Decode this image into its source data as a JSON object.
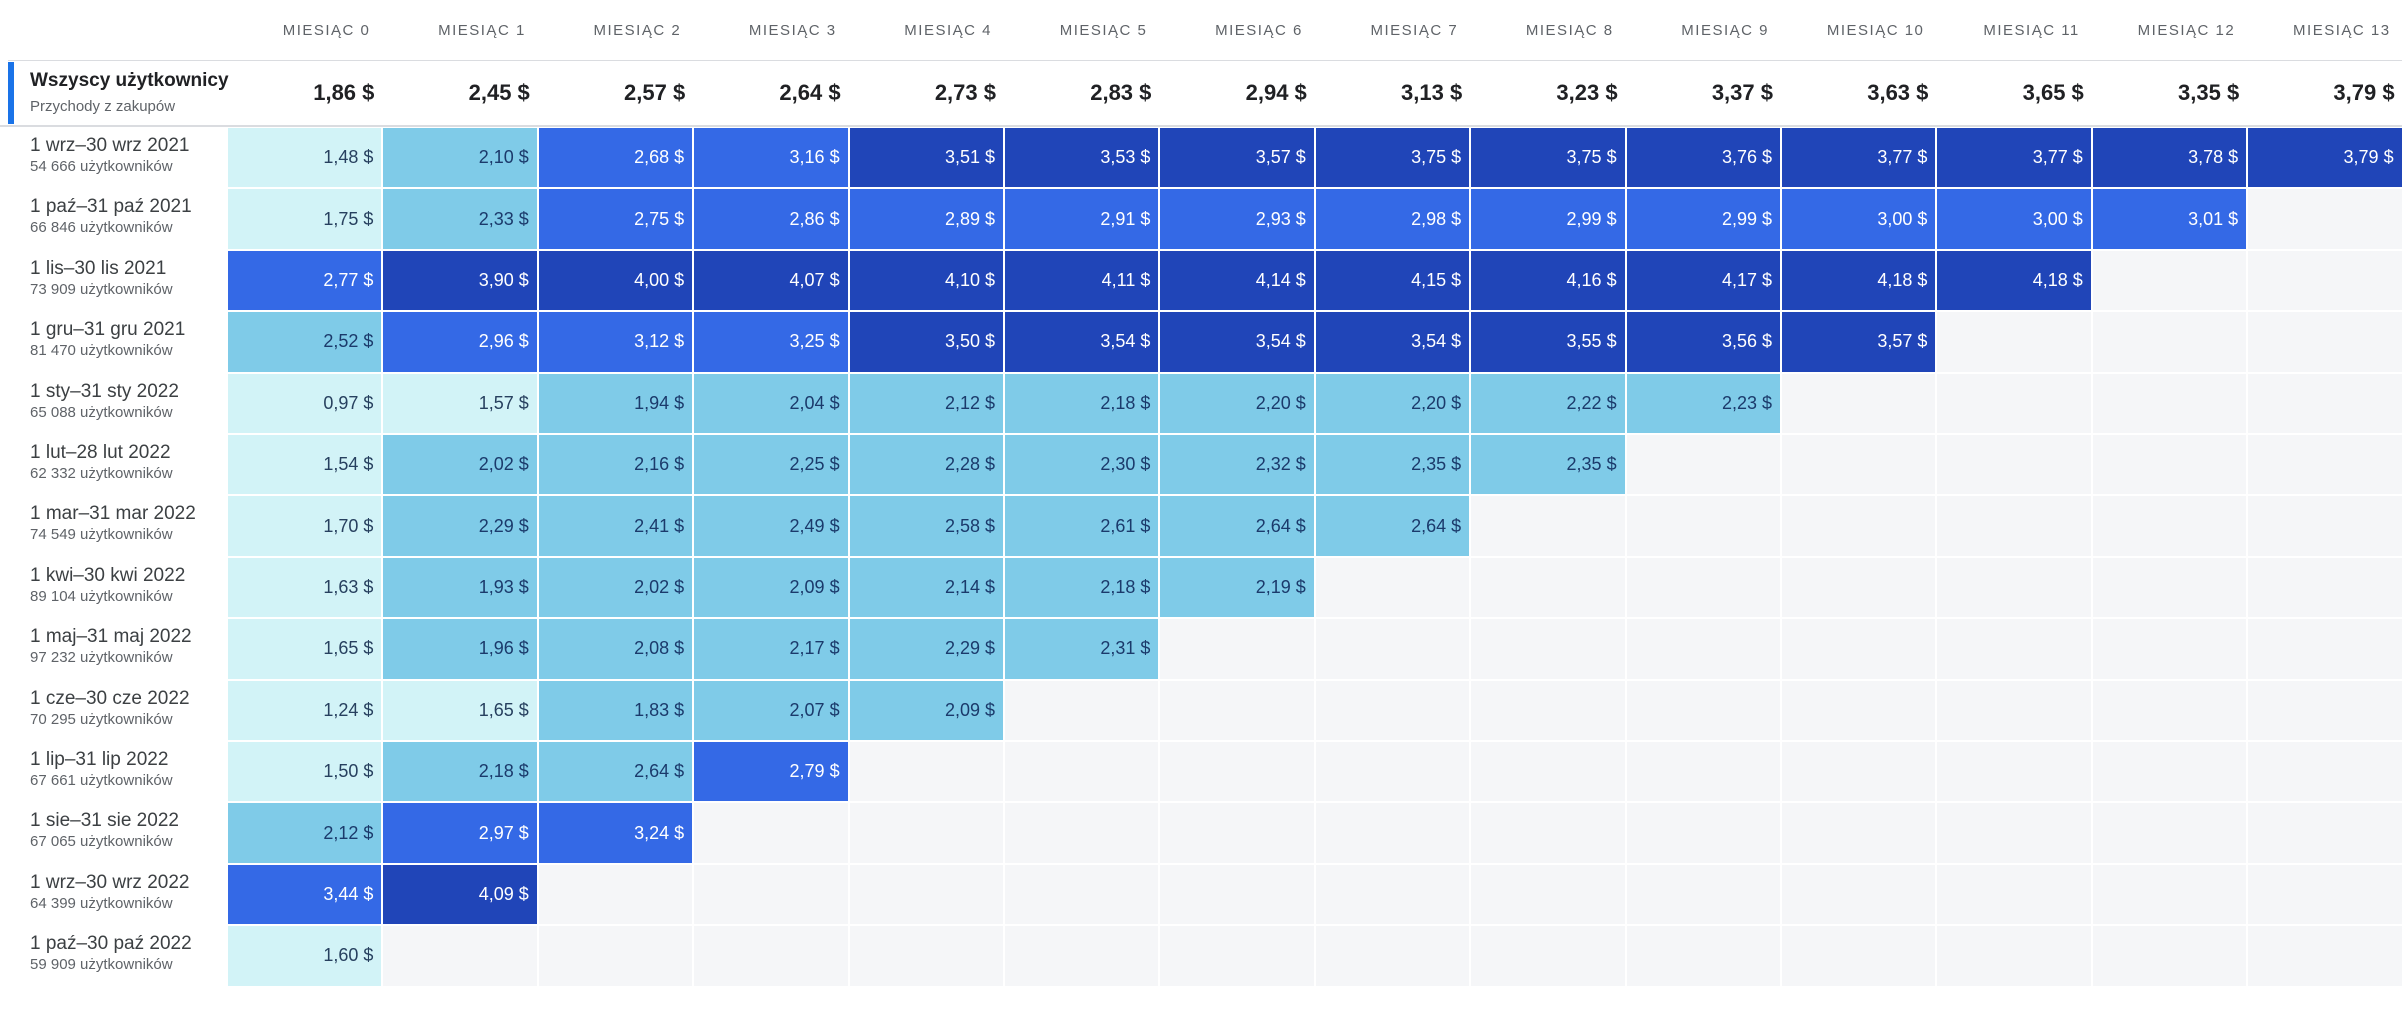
{
  "columns": [
    "MIESIĄC 0",
    "MIESIĄC 1",
    "MIESIĄC 2",
    "MIESIĄC 3",
    "MIESIĄC 4",
    "MIESIĄC 5",
    "MIESIĄC 6",
    "MIESIĄC 7",
    "MIESIĄC 8",
    "MIESIĄC 9",
    "MIESIĄC 10",
    "MIESIĄC 11",
    "MIESIĄC 12",
    "MIESIĄC 13"
  ],
  "totals": {
    "title": "Wszyscy użytkownicy",
    "subtitle": "Przychody z zakupów",
    "values": [
      "1,86 $",
      "2,45 $",
      "2,57 $",
      "2,64 $",
      "2,73 $",
      "2,83 $",
      "2,94 $",
      "3,13 $",
      "3,23 $",
      "3,37 $",
      "3,63 $",
      "3,65 $",
      "3,35 $",
      "3,79 $"
    ]
  },
  "colors": {
    "level1": "#d2f3f7",
    "level2": "#7fcbe8",
    "level3": "#3469e6",
    "level4": "#2045b8",
    "empty": "#f5f6f8",
    "accent": "#1a73e8"
  },
  "chart_data": {
    "type": "heatmap",
    "title": "Wszyscy użytkownicy",
    "subtitle": "Przychody z zakupów",
    "rows": [
      {
        "date": "1 wrz–30 wrz 2021",
        "users": "54 666 użytkowników",
        "values": [
          1.48,
          2.1,
          2.68,
          3.16,
          3.51,
          3.53,
          3.57,
          3.75,
          3.75,
          3.76,
          3.77,
          3.77,
          3.78,
          3.79
        ],
        "labels": [
          "1,48 $",
          "2,10 $",
          "2,68 $",
          "3,16 $",
          "3,51 $",
          "3,53 $",
          "3,57 $",
          "3,75 $",
          "3,75 $",
          "3,76 $",
          "3,77 $",
          "3,77 $",
          "3,78 $",
          "3,79 $"
        ],
        "levels": [
          1,
          2,
          3,
          3,
          4,
          4,
          4,
          4,
          4,
          4,
          4,
          4,
          4,
          4
        ]
      },
      {
        "date": "1 paź–31 paź 2021",
        "users": "66 846 użytkowników",
        "values": [
          1.75,
          2.33,
          2.75,
          2.86,
          2.89,
          2.91,
          2.93,
          2.98,
          2.99,
          2.99,
          3.0,
          3.0,
          3.01
        ],
        "labels": [
          "1,75 $",
          "2,33 $",
          "2,75 $",
          "2,86 $",
          "2,89 $",
          "2,91 $",
          "2,93 $",
          "2,98 $",
          "2,99 $",
          "2,99 $",
          "3,00 $",
          "3,00 $",
          "3,01 $"
        ],
        "levels": [
          1,
          2,
          3,
          3,
          3,
          3,
          3,
          3,
          3,
          3,
          3,
          3,
          3
        ]
      },
      {
        "date": "1 lis–30 lis 2021",
        "users": "73 909 użytkowników",
        "values": [
          2.77,
          3.9,
          4.0,
          4.07,
          4.1,
          4.11,
          4.14,
          4.15,
          4.16,
          4.17,
          4.18,
          4.18
        ],
        "labels": [
          "2,77 $",
          "3,90 $",
          "4,00 $",
          "4,07 $",
          "4,10 $",
          "4,11 $",
          "4,14 $",
          "4,15 $",
          "4,16 $",
          "4,17 $",
          "4,18 $",
          "4,18 $"
        ],
        "levels": [
          3,
          4,
          4,
          4,
          4,
          4,
          4,
          4,
          4,
          4,
          4,
          4
        ]
      },
      {
        "date": "1 gru–31 gru 2021",
        "users": "81 470 użytkowników",
        "values": [
          2.52,
          2.96,
          3.12,
          3.25,
          3.5,
          3.54,
          3.54,
          3.54,
          3.55,
          3.56,
          3.57
        ],
        "labels": [
          "2,52 $",
          "2,96 $",
          "3,12 $",
          "3,25 $",
          "3,50 $",
          "3,54 $",
          "3,54 $",
          "3,54 $",
          "3,55 $",
          "3,56 $",
          "3,57 $"
        ],
        "levels": [
          2,
          3,
          3,
          3,
          4,
          4,
          4,
          4,
          4,
          4,
          4
        ]
      },
      {
        "date": "1 sty–31 sty 2022",
        "users": "65 088 użytkowników",
        "values": [
          0.97,
          1.57,
          1.94,
          2.04,
          2.12,
          2.18,
          2.2,
          2.2,
          2.22,
          2.23
        ],
        "labels": [
          "0,97 $",
          "1,57 $",
          "1,94 $",
          "2,04 $",
          "2,12 $",
          "2,18 $",
          "2,20 $",
          "2,20 $",
          "2,22 $",
          "2,23 $"
        ],
        "levels": [
          1,
          1,
          2,
          2,
          2,
          2,
          2,
          2,
          2,
          2
        ]
      },
      {
        "date": "1 lut–28 lut 2022",
        "users": "62 332 użytkowników",
        "values": [
          1.54,
          2.02,
          2.16,
          2.25,
          2.28,
          2.3,
          2.32,
          2.35,
          2.35
        ],
        "labels": [
          "1,54 $",
          "2,02 $",
          "2,16 $",
          "2,25 $",
          "2,28 $",
          "2,30 $",
          "2,32 $",
          "2,35 $",
          "2,35 $"
        ],
        "levels": [
          1,
          2,
          2,
          2,
          2,
          2,
          2,
          2,
          2
        ]
      },
      {
        "date": "1 mar–31 mar 2022",
        "users": "74 549 użytkowników",
        "values": [
          1.7,
          2.29,
          2.41,
          2.49,
          2.58,
          2.61,
          2.64,
          2.64
        ],
        "labels": [
          "1,70 $",
          "2,29 $",
          "2,41 $",
          "2,49 $",
          "2,58 $",
          "2,61 $",
          "2,64 $",
          "2,64 $"
        ],
        "levels": [
          1,
          2,
          2,
          2,
          2,
          2,
          2,
          2
        ]
      },
      {
        "date": "1 kwi–30 kwi 2022",
        "users": "89 104 użytkowników",
        "values": [
          1.63,
          1.93,
          2.02,
          2.09,
          2.14,
          2.18,
          2.19
        ],
        "labels": [
          "1,63 $",
          "1,93 $",
          "2,02 $",
          "2,09 $",
          "2,14 $",
          "2,18 $",
          "2,19 $"
        ],
        "levels": [
          1,
          2,
          2,
          2,
          2,
          2,
          2
        ]
      },
      {
        "date": "1 maj–31 maj 2022",
        "users": "97 232 użytkowników",
        "values": [
          1.65,
          1.96,
          2.08,
          2.17,
          2.29,
          2.31
        ],
        "labels": [
          "1,65 $",
          "1,96 $",
          "2,08 $",
          "2,17 $",
          "2,29 $",
          "2,31 $"
        ],
        "levels": [
          1,
          2,
          2,
          2,
          2,
          2
        ]
      },
      {
        "date": "1 cze–30 cze 2022",
        "users": "70 295 użytkowników",
        "values": [
          1.24,
          1.65,
          1.83,
          2.07,
          2.09
        ],
        "labels": [
          "1,24 $",
          "1,65 $",
          "1,83 $",
          "2,07 $",
          "2,09 $"
        ],
        "levels": [
          1,
          1,
          2,
          2,
          2
        ]
      },
      {
        "date": "1 lip–31 lip 2022",
        "users": "67 661 użytkowników",
        "values": [
          1.5,
          2.18,
          2.64,
          2.79
        ],
        "labels": [
          "1,50 $",
          "2,18 $",
          "2,64 $",
          "2,79 $"
        ],
        "levels": [
          1,
          2,
          2,
          3
        ]
      },
      {
        "date": "1 sie–31 sie 2022",
        "users": "67 065 użytkowników",
        "values": [
          2.12,
          2.97,
          3.24
        ],
        "labels": [
          "2,12 $",
          "2,97 $",
          "3,24 $"
        ],
        "levels": [
          2,
          3,
          3
        ]
      },
      {
        "date": "1 wrz–30 wrz 2022",
        "users": "64 399 użytkowników",
        "values": [
          3.44,
          4.09
        ],
        "labels": [
          "3,44 $",
          "4,09 $"
        ],
        "levels": [
          3,
          4
        ]
      },
      {
        "date": "1 paź–30 paź 2022",
        "users": "59 909 użytkowników",
        "values": [
          1.6
        ],
        "labels": [
          "1,60 $"
        ],
        "levels": [
          1
        ]
      }
    ]
  }
}
